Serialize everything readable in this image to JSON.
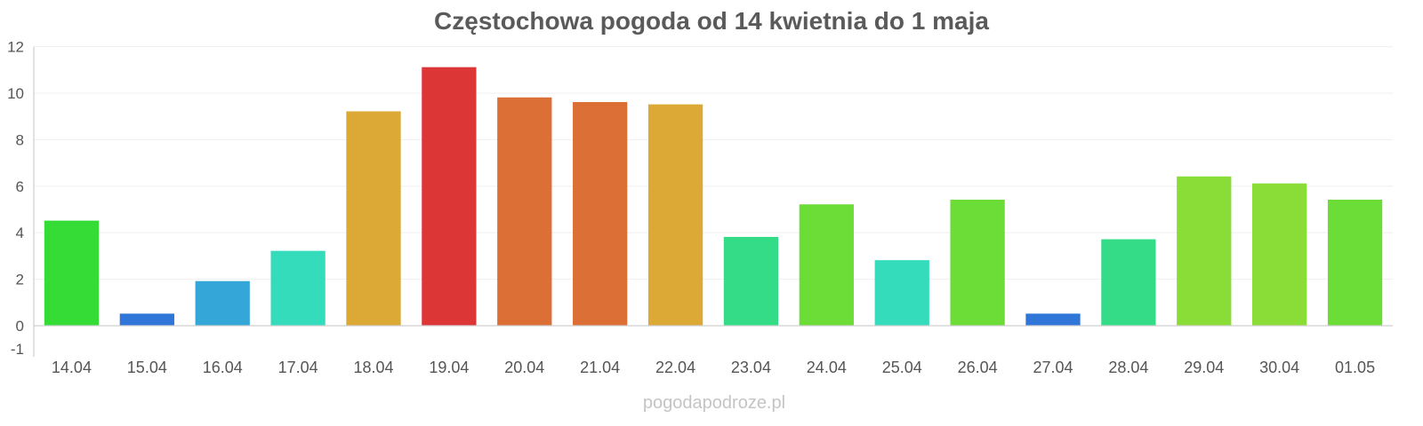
{
  "chart_data": {
    "type": "bar",
    "title": "Częstochowa pogoda od 14 kwietnia do 1 maja",
    "xlabel": "",
    "ylabel": "",
    "ylim": [
      -1,
      12
    ],
    "yticks": [
      -1,
      0,
      2,
      4,
      6,
      8,
      10,
      12
    ],
    "grid": true,
    "categories": [
      "14.04",
      "15.04",
      "16.04",
      "17.04",
      "18.04",
      "19.04",
      "20.04",
      "21.04",
      "22.04",
      "23.04",
      "24.04",
      "25.04",
      "26.04",
      "27.04",
      "28.04",
      "29.04",
      "30.04",
      "01.05"
    ],
    "values": [
      4.5,
      0.5,
      1.9,
      3.2,
      9.2,
      11.1,
      9.8,
      9.6,
      9.5,
      3.8,
      5.2,
      2.8,
      5.4,
      0.5,
      3.7,
      6.4,
      6.1,
      5.4
    ],
    "colors": [
      "#36dc36",
      "#2f76d8",
      "#35a6d8",
      "#35dcbc",
      "#dca836",
      "#dc3636",
      "#dc6f36",
      "#dc6f36",
      "#dca836",
      "#35dc88",
      "#6cdc36",
      "#35dcbc",
      "#6cdc36",
      "#2f76d8",
      "#35dc88",
      "#8adc36",
      "#8adc36",
      "#6cdc36"
    ]
  },
  "footer": {
    "watermark": "pogodapodroze.pl"
  }
}
